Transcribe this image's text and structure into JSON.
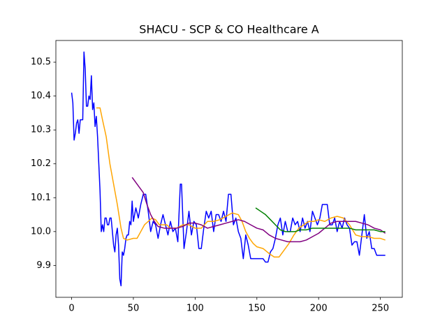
{
  "chart_data": {
    "type": "line",
    "title": "SHACU - SCP & CO Healthcare A",
    "xlim": [
      -12.75,
      267.75
    ],
    "xticks": [
      0,
      50,
      100,
      150,
      200,
      250
    ],
    "ylim": [
      9.806,
      10.564
    ],
    "yticks": [
      9.9,
      {
        "value": 10,
        "label": "10.0"
      },
      10.1,
      10.2,
      10.3,
      10.4,
      10.5
    ],
    "series": [
      {
        "color": "#0000ff",
        "x": [
          0,
          1,
          2,
          3,
          4,
          5,
          6,
          7,
          8,
          9,
          10,
          11,
          12,
          13,
          14,
          15,
          16,
          17,
          18,
          19,
          20,
          21,
          22,
          23,
          24,
          25,
          26,
          27,
          28,
          29,
          30,
          31,
          32,
          33,
          34,
          35,
          36,
          37,
          38,
          39,
          40,
          41,
          42,
          43,
          44,
          45,
          46,
          47,
          48,
          49,
          50,
          52,
          54,
          56,
          58,
          60,
          62,
          64,
          66,
          68,
          70,
          72,
          74,
          76,
          78,
          80,
          82,
          84,
          86,
          88,
          89,
          91,
          93,
          95,
          97,
          99,
          101,
          103,
          105,
          107,
          109,
          111,
          113,
          115,
          117,
          119,
          121,
          123,
          125,
          127,
          129,
          131,
          133,
          135,
          137,
          139,
          141,
          143,
          145,
          150,
          155,
          157,
          159,
          161,
          163,
          165,
          167,
          169,
          171,
          173,
          175,
          177,
          179,
          181,
          183,
          185,
          187,
          189,
          191,
          193,
          195,
          197,
          199,
          201,
          203,
          205,
          207,
          209,
          211,
          213,
          215,
          217,
          219,
          221,
          223,
          225,
          227,
          229,
          231,
          233,
          235,
          237,
          239,
          241,
          243,
          245,
          247,
          250,
          254
        ],
        "values": [
          10.41,
          10.38,
          10.27,
          10.29,
          10.32,
          10.33,
          10.29,
          10.33,
          10.33,
          10.33,
          10.53,
          10.48,
          10.37,
          10.37,
          10.4,
          10.39,
          10.46,
          10.36,
          10.38,
          10.31,
          10.34,
          10.28,
          10.2,
          10.12,
          10.0,
          10.02,
          10.0,
          10.04,
          10.04,
          10.02,
          10.02,
          10.04,
          10.04,
          10.0,
          9.96,
          9.94,
          9.99,
          10.01,
          9.96,
          9.86,
          9.84,
          9.94,
          9.93,
          9.95,
          9.98,
          9.99,
          9.99,
          10.03,
          10.02,
          10.09,
          10.03,
          10.07,
          10.04,
          10.08,
          10.11,
          10.11,
          10.06,
          10.0,
          10.03,
          10.02,
          9.98,
          10.02,
          10.05,
          10.02,
          9.99,
          10.03,
          10.0,
          10.01,
          9.97,
          10.14,
          10.14,
          9.95,
          10.0,
          10.06,
          9.99,
          10.03,
          10.02,
          9.95,
          9.95,
          10.01,
          10.06,
          10.04,
          10.06,
          10.0,
          10.05,
          10.05,
          10.03,
          10.06,
          10.03,
          10.11,
          10.11,
          10.02,
          10.04,
          10.0,
          9.98,
          9.92,
          9.99,
          9.96,
          9.92,
          9.92,
          9.92,
          9.91,
          9.91,
          9.94,
          9.95,
          9.98,
          10.02,
          10.04,
          9.99,
          10.03,
          10.0,
          10.0,
          10.04,
          10.02,
          10.03,
          10.0,
          10.04,
          10.01,
          10.03,
          10.0,
          10.06,
          10.04,
          10.02,
          10.04,
          10.08,
          10.08,
          10.08,
          10.02,
          10.02,
          10.04,
          10.0,
          10.03,
          10.01,
          10.04,
          10.02,
          10.01,
          9.96,
          9.97,
          9.97,
          9.93,
          9.99,
          10.05,
          9.98,
          10.0,
          9.95,
          9.95,
          9.93,
          9.93,
          9.93
        ]
      },
      {
        "color": "#ffa500",
        "x": [
          20,
          23,
          25,
          28,
          31,
          34,
          37,
          40,
          42,
          45,
          50,
          53,
          56,
          59,
          62,
          65,
          68,
          71,
          74,
          77,
          80,
          85,
          90,
          95,
          100,
          105,
          110,
          115,
          120,
          125,
          130,
          135,
          138,
          141,
          144,
          147,
          150,
          155,
          160,
          164,
          168,
          172,
          176,
          180,
          184,
          188,
          192,
          196,
          200,
          205,
          210,
          215,
          220,
          225,
          230,
          235,
          240,
          245,
          250,
          254
        ],
        "values": [
          10.365,
          10.365,
          10.33,
          10.28,
          10.2,
          10.14,
          10.08,
          10.01,
          9.98,
          9.975,
          9.98,
          9.98,
          10.0,
          10.02,
          10.03,
          10.04,
          10.035,
          10.02,
          10.02,
          10.02,
          10.01,
          10.01,
          10.02,
          10.02,
          10.01,
          10.01,
          10.03,
          10.03,
          10.035,
          10.045,
          10.055,
          10.05,
          10.03,
          10.0,
          9.98,
          9.965,
          9.955,
          9.95,
          9.935,
          9.925,
          9.925,
          9.945,
          9.965,
          9.99,
          10.01,
          10.02,
          10.03,
          10.03,
          10.035,
          10.03,
          10.04,
          10.045,
          10.04,
          10.02,
          9.99,
          9.985,
          9.985,
          9.98,
          9.98,
          9.975
        ]
      },
      {
        "color": "#800080",
        "x": [
          49,
          52,
          55,
          58,
          61,
          64,
          67,
          70,
          75,
          80,
          85,
          90,
          95,
          100,
          105,
          110,
          115,
          120,
          125,
          130,
          135,
          140,
          145,
          150,
          155,
          160,
          165,
          170,
          175,
          180,
          185,
          190,
          195,
          200,
          205,
          210,
          215,
          220,
          225,
          230,
          235,
          240,
          245,
          250,
          254
        ],
        "values": [
          10.16,
          10.145,
          10.13,
          10.115,
          10.08,
          10.05,
          10.03,
          10.015,
          10.01,
          10.01,
          10.01,
          10.015,
          10.025,
          10.025,
          10.02,
          10.01,
          10.015,
          10.02,
          10.025,
          10.03,
          10.035,
          10.03,
          10.02,
          10.01,
          10.005,
          9.99,
          9.98,
          9.975,
          9.97,
          9.97,
          9.97,
          9.975,
          9.985,
          9.995,
          10.01,
          10.025,
          10.03,
          10.03,
          10.03,
          10.03,
          10.025,
          10.02,
          10.01,
          10.005,
          9.995
        ]
      },
      {
        "color": "#008000",
        "x": [
          149,
          153,
          157,
          161,
          165,
          169,
          173,
          177,
          181,
          185,
          190,
          195,
          200,
          205,
          210,
          215,
          220,
          225,
          230,
          235,
          240,
          245,
          250,
          254
        ],
        "values": [
          10.07,
          10.06,
          10.05,
          10.035,
          10.02,
          10.005,
          10.0,
          10.0,
          10.0,
          10.005,
          10.005,
          10.01,
          10.01,
          10.01,
          10.01,
          10.01,
          10.01,
          10.01,
          10.005,
          10.005,
          10.005,
          10.005,
          10.0,
          10.0
        ]
      }
    ]
  }
}
